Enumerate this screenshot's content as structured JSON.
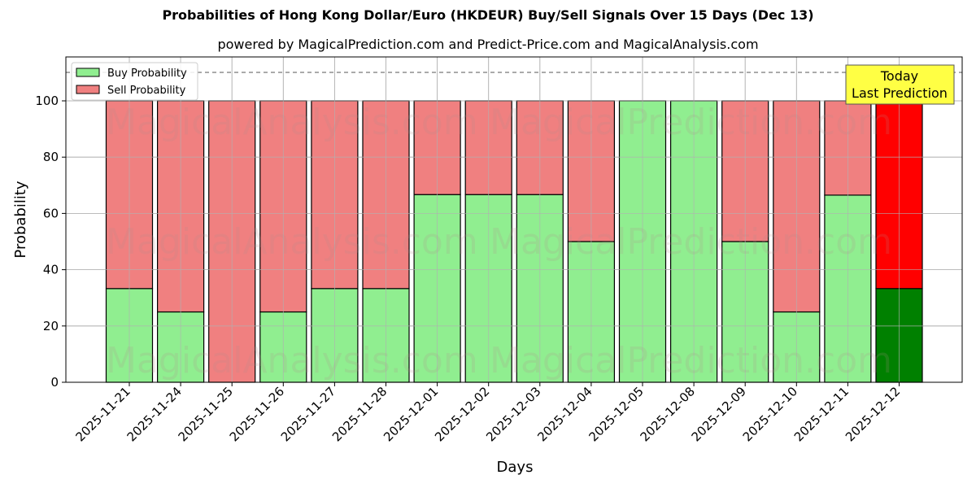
{
  "header": {
    "title": "Probabilities of Hong Kong Dollar/Euro (HKDEUR) Buy/Sell Signals Over 15 Days (Dec 13)",
    "subtitle": "powered by MagicalPrediction.com and Predict-Price.com and MagicalAnalysis.com"
  },
  "legend": {
    "buy_label": "Buy Probability",
    "sell_label": "Sell Probability"
  },
  "annotation": {
    "line1": "Today",
    "line2": "Last Prediction"
  },
  "watermarks": [
    "MagicalAnalysis.com",
    "MagicalPrediction.com"
  ],
  "colors": {
    "buy": "#90ee90",
    "sell": "#f08080",
    "today_buy": "#008000",
    "today_sell": "#ff0000",
    "annotation_bg": "#ffff44"
  },
  "chart_data": {
    "type": "bar",
    "stacked": true,
    "title": "Probabilities of Hong Kong Dollar/Euro (HKDEUR) Buy/Sell Signals Over 15 Days (Dec 13)",
    "subtitle": "powered by MagicalPrediction.com and Predict-Price.com and MagicalAnalysis.com",
    "xlabel": "Days",
    "ylabel": "Probability",
    "ylim": [
      0,
      115
    ],
    "yticks": [
      0,
      20,
      40,
      60,
      80,
      100
    ],
    "grid": true,
    "legend_position": "upper left",
    "reference_line": 110,
    "categories": [
      "2025-11-21",
      "2025-11-24",
      "2025-11-25",
      "2025-11-26",
      "2025-11-27",
      "2025-11-28",
      "2025-12-01",
      "2025-12-02",
      "2025-12-03",
      "2025-12-04",
      "2025-12-05",
      "2025-12-08",
      "2025-12-09",
      "2025-12-10",
      "2025-12-11",
      "2025-12-12"
    ],
    "series": [
      {
        "name": "Buy Probability",
        "values": [
          33.3,
          25,
          0,
          25,
          33.3,
          33.3,
          66.7,
          66.7,
          66.7,
          50,
          100,
          100,
          50,
          25,
          66.5,
          33.3
        ]
      },
      {
        "name": "Sell Probability",
        "values": [
          66.7,
          75,
          100,
          75,
          66.7,
          66.7,
          33.3,
          33.3,
          33.3,
          50,
          0,
          0,
          50,
          75,
          33.5,
          66.7
        ]
      }
    ],
    "annotations": [
      {
        "text": "Today\nLast Prediction",
        "category": "2025-12-12"
      }
    ]
  }
}
